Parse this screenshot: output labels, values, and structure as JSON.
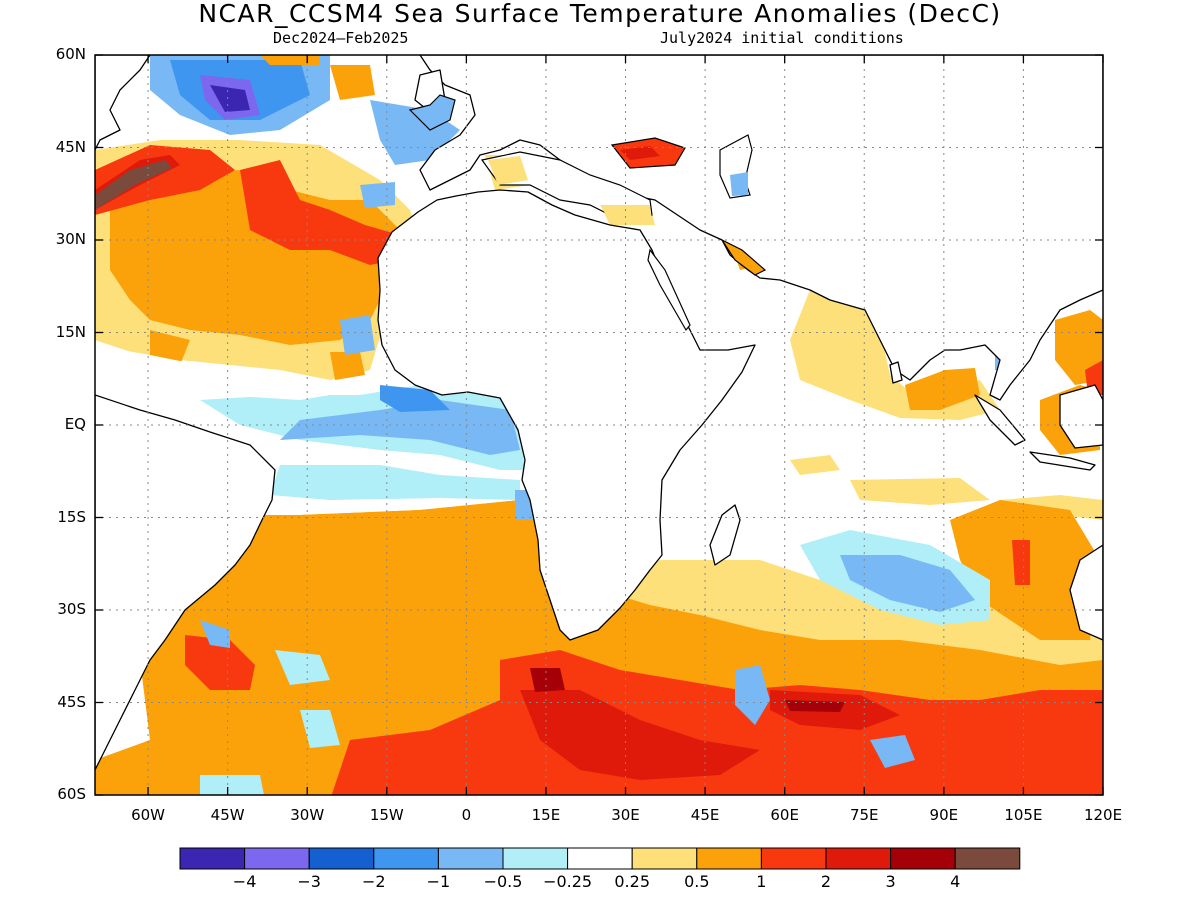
{
  "title": "NCAR_CCSM4 Sea Surface Temperature Anomalies (DecC)",
  "subtitle_left": "Dec2024–Feb2025",
  "subtitle_right": "July2024 initial conditions",
  "lat_labels": [
    "60N",
    "45N",
    "30N",
    "15N",
    "EQ",
    "15S",
    "30S",
    "45S",
    "60S"
  ],
  "lon_labels": [
    "60W",
    "45W",
    "30W",
    "15W",
    "0",
    "15E",
    "30E",
    "45E",
    "60E",
    "75E",
    "90E",
    "105E",
    "120E"
  ],
  "colorbar": {
    "colors": [
      "#3a26b0",
      "#7b68ee",
      "#1560d0",
      "#3e96f0",
      "#78b8f5",
      "#b0eef8",
      "#ffffff",
      "#fde07a",
      "#fba10a",
      "#f8390f",
      "#e01a0a",
      "#a50008",
      "#7a4a3c"
    ],
    "labels": [
      "−4",
      "−3",
      "−2",
      "−1",
      "−0.5",
      "−0.25",
      "0.25",
      "0.5",
      "1",
      "2",
      "3",
      "4"
    ]
  },
  "map_data": {
    "lon_range": [
      -70,
      120
    ],
    "lat_range": [
      -60,
      60
    ],
    "grid_lons": [
      -60,
      -45,
      -30,
      -15,
      0,
      15,
      30,
      45,
      60,
      75,
      90,
      105
    ],
    "grid_lats": [
      -45,
      -30,
      -15,
      0,
      15,
      30,
      45
    ]
  }
}
